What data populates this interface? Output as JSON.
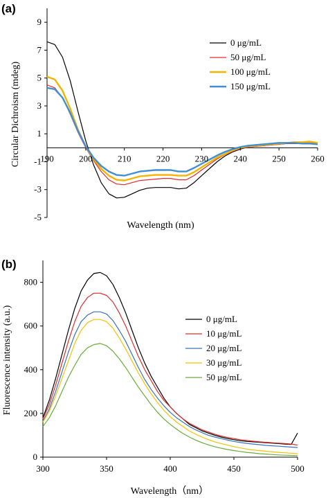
{
  "chart_data": [
    {
      "type": "line",
      "panel_label": "(a)",
      "xlabel": "Wavelength (nm)",
      "ylabel": "Circular Dichroism (mdeg)",
      "xlim": [
        190,
        260
      ],
      "ylim": [
        -5,
        10
      ],
      "xticks": [
        190,
        200,
        210,
        220,
        230,
        240,
        250,
        260
      ],
      "yticks": [
        -5,
        -3,
        -1,
        1,
        3,
        5,
        7,
        9
      ],
      "legend_position": "top-right",
      "series": [
        {
          "name": "0 μg/mL",
          "color": "#000000",
          "x": [
            190,
            192,
            194,
            196,
            198,
            200,
            202,
            204,
            206,
            208,
            210,
            212,
            214,
            216,
            218,
            220,
            222,
            224,
            226,
            228,
            230,
            232,
            234,
            236,
            238,
            240,
            242,
            244,
            246,
            248,
            250,
            252,
            254,
            256,
            258,
            260
          ],
          "y": [
            7.6,
            7.4,
            6.5,
            4.8,
            2.6,
            0.5,
            -1.2,
            -2.5,
            -3.3,
            -3.6,
            -3.55,
            -3.3,
            -3.05,
            -2.9,
            -2.85,
            -2.85,
            -2.85,
            -2.95,
            -2.9,
            -2.5,
            -2.0,
            -1.5,
            -1.0,
            -0.6,
            -0.3,
            -0.1,
            0.05,
            0.1,
            0.15,
            0.2,
            0.25,
            0.3,
            0.3,
            0.3,
            0.3,
            0.25
          ]
        },
        {
          "name": "50 μg/mL",
          "color": "#e32a2a",
          "x": [
            190,
            192,
            194,
            196,
            198,
            200,
            202,
            204,
            206,
            208,
            210,
            212,
            214,
            216,
            218,
            220,
            222,
            224,
            226,
            228,
            230,
            232,
            234,
            236,
            238,
            240,
            242,
            244,
            246,
            248,
            250,
            252,
            254,
            256,
            258,
            260
          ],
          "y": [
            4.5,
            4.3,
            3.6,
            2.4,
            1.1,
            0.0,
            -0.9,
            -1.7,
            -2.3,
            -2.6,
            -2.65,
            -2.5,
            -2.35,
            -2.3,
            -2.25,
            -2.2,
            -2.2,
            -2.3,
            -2.3,
            -2.0,
            -1.6,
            -1.2,
            -0.8,
            -0.5,
            -0.25,
            -0.05,
            0.05,
            0.1,
            0.15,
            0.2,
            0.25,
            0.3,
            0.3,
            0.35,
            0.35,
            0.3
          ]
        },
        {
          "name": "100 μg/mL",
          "color": "#f2b400",
          "x": [
            190,
            192,
            194,
            196,
            198,
            200,
            202,
            204,
            206,
            208,
            210,
            212,
            214,
            216,
            218,
            220,
            222,
            224,
            226,
            228,
            230,
            232,
            234,
            236,
            238,
            240,
            242,
            244,
            246,
            248,
            250,
            252,
            254,
            256,
            258,
            260
          ],
          "y": [
            5.1,
            4.9,
            4.1,
            2.8,
            1.3,
            0.1,
            -0.8,
            -1.5,
            -2.0,
            -2.3,
            -2.35,
            -2.2,
            -2.05,
            -2.0,
            -1.95,
            -1.95,
            -1.95,
            -2.0,
            -2.0,
            -1.75,
            -1.4,
            -1.05,
            -0.7,
            -0.45,
            -0.2,
            0.0,
            0.1,
            0.15,
            0.2,
            0.25,
            0.3,
            0.35,
            0.4,
            0.4,
            0.45,
            0.35
          ]
        },
        {
          "name": "150 μg/mL",
          "color": "#3f8fd2",
          "x": [
            190,
            192,
            194,
            196,
            198,
            200,
            202,
            204,
            206,
            208,
            210,
            212,
            214,
            216,
            218,
            220,
            222,
            224,
            226,
            228,
            230,
            232,
            234,
            236,
            238,
            240,
            242,
            244,
            246,
            248,
            250,
            252,
            254,
            256,
            258,
            260
          ],
          "y": [
            4.3,
            4.2,
            3.6,
            2.5,
            1.2,
            0.1,
            -0.7,
            -1.3,
            -1.7,
            -1.95,
            -2.0,
            -1.85,
            -1.7,
            -1.65,
            -1.6,
            -1.6,
            -1.6,
            -1.7,
            -1.7,
            -1.45,
            -1.15,
            -0.85,
            -0.55,
            -0.3,
            -0.1,
            0.05,
            0.15,
            0.2,
            0.25,
            0.3,
            0.35,
            0.35,
            0.35,
            0.3,
            0.3,
            0.25
          ]
        }
      ]
    },
    {
      "type": "line",
      "panel_label": "(b)",
      "xlabel": "Wavelength（nm）",
      "ylabel": "Fluorescence intensity (a.u.)",
      "xlim": [
        300,
        500
      ],
      "ylim": [
        0,
        900
      ],
      "xticks": [
        300,
        350,
        400,
        450,
        500
      ],
      "yticks": [
        0,
        200,
        400,
        600,
        800
      ],
      "legend_position": "center-right",
      "series": [
        {
          "name": "0 μg/mL",
          "color": "#000000",
          "x": [
            300,
            305,
            310,
            315,
            320,
            325,
            330,
            335,
            340,
            345,
            350,
            355,
            360,
            365,
            370,
            375,
            380,
            385,
            390,
            395,
            400,
            405,
            410,
            415,
            420,
            425,
            430,
            435,
            440,
            445,
            450,
            455,
            460,
            465,
            470,
            475,
            480,
            485,
            490,
            495,
            500
          ],
          "y": [
            180,
            260,
            360,
            470,
            580,
            680,
            760,
            810,
            840,
            845,
            830,
            790,
            730,
            660,
            580,
            500,
            430,
            370,
            320,
            270,
            230,
            200,
            175,
            150,
            135,
            120,
            110,
            100,
            92,
            85,
            80,
            75,
            72,
            70,
            68,
            66,
            64,
            62,
            60,
            58,
            110
          ]
        },
        {
          "name": "10 μg/mL",
          "color": "#e32a2a",
          "x": [
            300,
            305,
            310,
            315,
            320,
            325,
            330,
            335,
            340,
            345,
            350,
            355,
            360,
            365,
            370,
            375,
            380,
            385,
            390,
            395,
            400,
            405,
            410,
            415,
            420,
            425,
            430,
            435,
            440,
            445,
            450,
            455,
            460,
            465,
            470,
            475,
            480,
            485,
            490,
            495,
            500
          ],
          "y": [
            175,
            240,
            330,
            430,
            530,
            620,
            690,
            730,
            750,
            750,
            740,
            710,
            660,
            600,
            530,
            460,
            400,
            350,
            300,
            260,
            230,
            200,
            175,
            155,
            140,
            125,
            115,
            105,
            97,
            90,
            85,
            80,
            76,
            73,
            70,
            68,
            66,
            64,
            62,
            60,
            55
          ]
        },
        {
          "name": "20 μg/mL",
          "color": "#3a73b5",
          "x": [
            300,
            305,
            310,
            315,
            320,
            325,
            330,
            335,
            340,
            345,
            350,
            355,
            360,
            365,
            370,
            375,
            380,
            385,
            390,
            395,
            400,
            405,
            410,
            415,
            420,
            425,
            430,
            435,
            440,
            445,
            450,
            455,
            460,
            465,
            470,
            475,
            480,
            485,
            490,
            495,
            500
          ],
          "y": [
            165,
            220,
            300,
            390,
            480,
            560,
            620,
            650,
            665,
            665,
            655,
            625,
            580,
            530,
            470,
            410,
            355,
            310,
            270,
            235,
            205,
            180,
            160,
            140,
            125,
            112,
            100,
            92,
            85,
            78,
            72,
            67,
            63,
            60,
            57,
            54,
            52,
            50,
            48,
            46,
            44
          ]
        },
        {
          "name": "30 μg/mL",
          "color": "#f2c200",
          "x": [
            300,
            305,
            310,
            315,
            320,
            325,
            330,
            335,
            340,
            345,
            350,
            355,
            360,
            365,
            370,
            375,
            380,
            385,
            390,
            395,
            400,
            405,
            410,
            415,
            420,
            425,
            430,
            435,
            440,
            445,
            450,
            455,
            460,
            465,
            470,
            475,
            480,
            485,
            490,
            495,
            500
          ],
          "y": [
            160,
            210,
            280,
            360,
            440,
            520,
            580,
            615,
            630,
            630,
            620,
            590,
            545,
            495,
            440,
            385,
            335,
            290,
            250,
            215,
            185,
            160,
            140,
            120,
            105,
            92,
            80,
            70,
            62,
            55,
            48,
            42,
            37,
            33,
            30,
            27,
            24,
            22,
            20,
            18,
            16
          ]
        },
        {
          "name": "50 μg/mL",
          "color": "#6aab3c",
          "x": [
            300,
            305,
            310,
            315,
            320,
            325,
            330,
            335,
            340,
            345,
            350,
            355,
            360,
            365,
            370,
            375,
            380,
            385,
            390,
            395,
            400,
            405,
            410,
            415,
            420,
            425,
            430,
            435,
            440,
            445,
            450,
            455,
            460,
            465,
            470,
            475,
            480,
            485,
            490,
            495,
            500
          ],
          "y": [
            140,
            180,
            235,
            300,
            365,
            420,
            470,
            500,
            515,
            520,
            510,
            485,
            450,
            410,
            365,
            320,
            280,
            240,
            205,
            175,
            150,
            128,
            108,
            92,
            78,
            66,
            56,
            48,
            41,
            35,
            30,
            26,
            22,
            19,
            16,
            14,
            12,
            10,
            9,
            8,
            7
          ]
        }
      ]
    }
  ]
}
